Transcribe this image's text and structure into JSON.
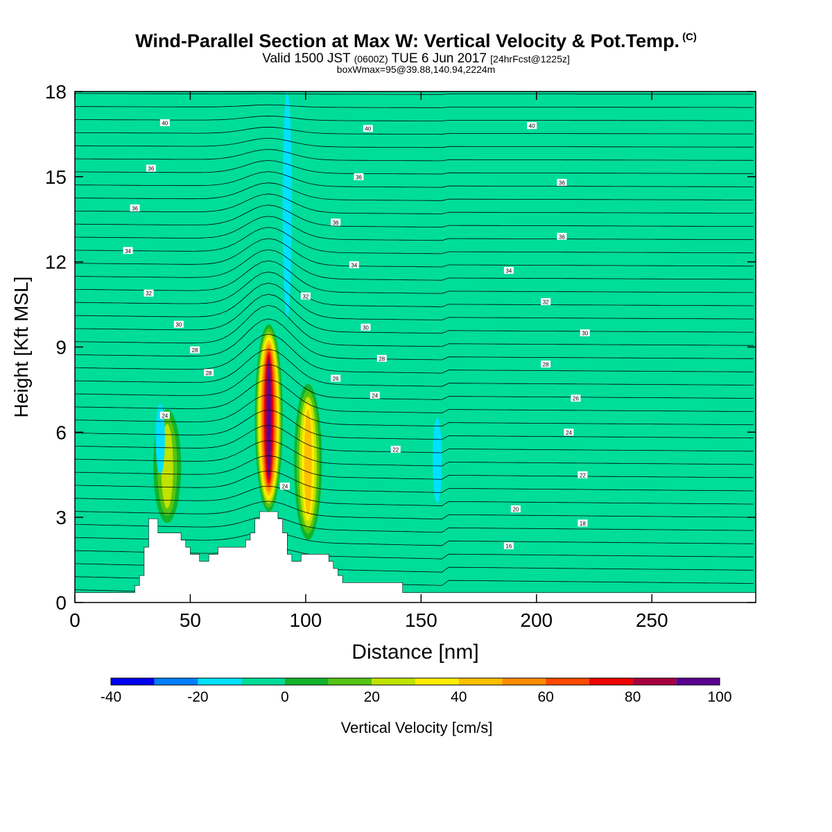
{
  "title": {
    "main": "Wind-Parallel Section at Max W: Vertical Velocity & Pot.Temp.",
    "main_tag": "(C)",
    "valid_a": "Valid 1500 JST",
    "valid_b": "(0600Z)",
    "valid_c": "TUE 6 Jun 2017",
    "valid_d": "[24hrFcst@1225z]",
    "box": "boxWmax=95@39.88,140.94,2224m"
  },
  "chart_data": {
    "type": "heatmap",
    "xlabel": "Distance [nm]",
    "ylabel": "Height [Kft MSL]",
    "xlim": [
      0,
      295
    ],
    "ylim": [
      0,
      18
    ],
    "xticks": [
      0,
      50,
      100,
      150,
      200,
      250
    ],
    "yticks": [
      0,
      3,
      6,
      9,
      12,
      15,
      18
    ],
    "colorbar": {
      "label": "Vertical Velocity [cm/s]",
      "ticks": [
        -40,
        -20,
        0,
        20,
        40,
        60,
        80,
        100
      ],
      "bins": [
        {
          "from": -40,
          "to": -30,
          "color": "#0000ee"
        },
        {
          "from": -30,
          "to": -20,
          "color": "#0080ff"
        },
        {
          "from": -20,
          "to": -10,
          "color": "#00e0ff"
        },
        {
          "from": -10,
          "to": 0,
          "color": "#00dc9a"
        },
        {
          "from": 0,
          "to": 10,
          "color": "#11b42a"
        },
        {
          "from": 10,
          "to": 20,
          "color": "#55c412"
        },
        {
          "from": 20,
          "to": 30,
          "color": "#c0e300"
        },
        {
          "from": 30,
          "to": 40,
          "color": "#ffee00"
        },
        {
          "from": 40,
          "to": 50,
          "color": "#ffc000"
        },
        {
          "from": 50,
          "to": 60,
          "color": "#ff8c00"
        },
        {
          "from": 60,
          "to": 70,
          "color": "#ff4a00"
        },
        {
          "from": 70,
          "to": 80,
          "color": "#ee0000"
        },
        {
          "from": 80,
          "to": 90,
          "color": "#a80040"
        },
        {
          "from": 90,
          "to": 100,
          "color": "#5a0090"
        }
      ]
    },
    "updrafts": [
      {
        "x": 84,
        "ymin": 3.2,
        "ymax": 9.8,
        "peak": 95
      },
      {
        "x": 101,
        "ymin": 2.2,
        "ymax": 7.7,
        "peak": 45
      },
      {
        "x": 40,
        "ymin": 2.8,
        "ymax": 6.8,
        "peak": 25
      }
    ],
    "downdrafts": [
      {
        "x": 92,
        "ymin": 10,
        "ymax": 18,
        "peak": -20
      },
      {
        "x": 157,
        "ymin": 3.5,
        "ymax": 6.5,
        "peak": -20
      },
      {
        "x": 37,
        "ymin": 4.5,
        "ymax": 7,
        "peak": -15
      }
    ],
    "terrain": {
      "x": [
        0,
        26,
        26,
        28,
        28,
        30,
        30,
        32,
        32,
        36,
        36,
        46,
        46,
        48,
        48,
        50,
        50,
        54,
        54,
        58,
        58,
        62,
        62,
        74,
        74,
        76,
        76,
        78,
        78,
        80,
        80,
        88,
        88,
        90,
        90,
        92,
        92,
        94,
        94,
        98,
        98,
        110,
        110,
        112,
        112,
        114,
        114,
        116,
        116,
        142,
        142,
        295
      ],
      "y": [
        0.35,
        0.35,
        0.6,
        0.6,
        0.95,
        0.95,
        1.95,
        1.95,
        2.95,
        2.95,
        2.45,
        2.45,
        2.2,
        2.2,
        1.95,
        1.95,
        1.7,
        1.7,
        1.45,
        1.45,
        1.7,
        1.7,
        1.95,
        1.95,
        2.2,
        2.2,
        2.45,
        2.45,
        2.95,
        2.95,
        3.2,
        3.2,
        2.95,
        2.95,
        2.45,
        2.45,
        1.7,
        1.7,
        1.45,
        1.45,
        1.7,
        1.7,
        1.45,
        1.45,
        1.2,
        1.2,
        0.95,
        0.95,
        0.7,
        0.7,
        0.35,
        0.35
      ]
    },
    "isentrope_labels": [
      {
        "text": "40",
        "x": 39,
        "y": 16.9
      },
      {
        "text": "40",
        "x": 127,
        "y": 16.7
      },
      {
        "text": "40",
        "x": 198,
        "y": 16.8
      },
      {
        "text": "36",
        "x": 33,
        "y": 15.3
      },
      {
        "text": "36",
        "x": 123,
        "y": 15.0
      },
      {
        "text": "36",
        "x": 211,
        "y": 14.8
      },
      {
        "text": "36",
        "x": 26,
        "y": 13.9
      },
      {
        "text": "36",
        "x": 113,
        "y": 13.4
      },
      {
        "text": "36",
        "x": 211,
        "y": 12.9
      },
      {
        "text": "34",
        "x": 23,
        "y": 12.4
      },
      {
        "text": "34",
        "x": 121,
        "y": 11.9
      },
      {
        "text": "34",
        "x": 188,
        "y": 11.7
      },
      {
        "text": "32",
        "x": 32,
        "y": 10.9
      },
      {
        "text": "32",
        "x": 100,
        "y": 10.8
      },
      {
        "text": "32",
        "x": 204,
        "y": 10.6
      },
      {
        "text": "30",
        "x": 45,
        "y": 9.8
      },
      {
        "text": "30",
        "x": 126,
        "y": 9.7
      },
      {
        "text": "30",
        "x": 221,
        "y": 9.5
      },
      {
        "text": "28",
        "x": 52,
        "y": 8.9
      },
      {
        "text": "28",
        "x": 133,
        "y": 8.6
      },
      {
        "text": "28",
        "x": 204,
        "y": 8.4
      },
      {
        "text": "28",
        "x": 58,
        "y": 8.1
      },
      {
        "text": "26",
        "x": 113,
        "y": 7.9
      },
      {
        "text": "26",
        "x": 217,
        "y": 7.2
      },
      {
        "text": "24",
        "x": 39,
        "y": 6.6
      },
      {
        "text": "24",
        "x": 130,
        "y": 7.3
      },
      {
        "text": "24",
        "x": 214,
        "y": 6.0
      },
      {
        "text": "24",
        "x": 91,
        "y": 4.1
      },
      {
        "text": "22",
        "x": 139,
        "y": 5.4
      },
      {
        "text": "22",
        "x": 220,
        "y": 4.5
      },
      {
        "text": "20",
        "x": 191,
        "y": 3.3
      },
      {
        "text": "18",
        "x": 220,
        "y": 2.8
      },
      {
        "text": "16",
        "x": 188,
        "y": 2.0
      }
    ]
  }
}
